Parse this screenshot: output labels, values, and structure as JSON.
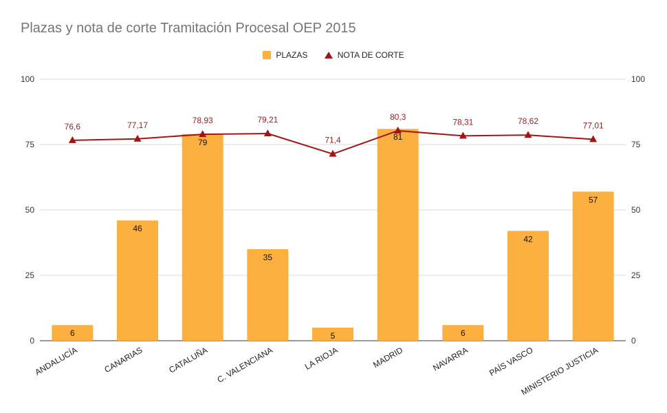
{
  "chart_data": {
    "type": "bar",
    "title": "Plazas y nota de corte Tramitación Procesal OEP 2015",
    "categories": [
      "ANDALUCÍA",
      "CANARIAS",
      "CATALUÑA",
      "C. VALENCIANA",
      "LA RIOJA",
      "MADRID",
      "NAVARRA",
      "PAÍS VASCO",
      "MINISTERIO JUSTICIA"
    ],
    "series": [
      {
        "name": "PLAZAS",
        "kind": "bar",
        "axis": "left",
        "color": "#fbb040",
        "values": [
          6,
          46,
          79,
          35,
          5,
          81,
          6,
          42,
          57
        ],
        "labels": [
          "6",
          "46",
          "79",
          "35",
          "5",
          "81",
          "6",
          "42",
          "57"
        ]
      },
      {
        "name": "NOTA DE CORTE",
        "kind": "line",
        "axis": "right",
        "color": "#a31515",
        "values": [
          76.6,
          77.17,
          78.93,
          79.21,
          71.4,
          80.3,
          78.31,
          78.62,
          77.01
        ],
        "labels": [
          "76,6",
          "77,17",
          "78,93",
          "79,21",
          "71,4",
          "80,3",
          "78,31",
          "78,62",
          "77,01"
        ]
      }
    ],
    "ylim": [
      0,
      100
    ],
    "yticks": [
      0,
      25,
      50,
      75,
      100
    ],
    "y2lim": [
      0,
      100
    ],
    "y2ticks": [
      0,
      25,
      50,
      75,
      100
    ],
    "xlabel": "",
    "ylabel": "",
    "grid": true,
    "legend": "top-center"
  }
}
